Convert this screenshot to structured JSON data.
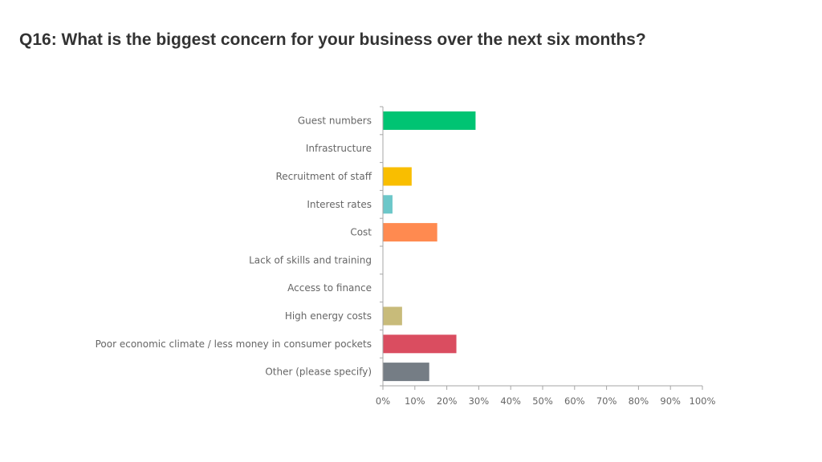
{
  "page": {
    "title": "Q16: What is the biggest concern for your business over the next six months?"
  },
  "chart_data": {
    "type": "bar",
    "orientation": "horizontal",
    "title": "",
    "xlabel": "",
    "ylabel": "",
    "categories": [
      "Guest numbers",
      "Infrastructure",
      "Recruitment of staff",
      "Interest rates",
      "Cost",
      "Lack of skills and training",
      "Access to finance",
      "High energy costs",
      "Poor economic climate / less money in consumer pockets",
      "Other (please specify)"
    ],
    "values": [
      29,
      0,
      9,
      3,
      17,
      0,
      0,
      6,
      23,
      14.5
    ],
    "colors": [
      "#00c473",
      "#a0a0a0",
      "#f9be00",
      "#6cc7c9",
      "#ff8a50",
      "#a0a0a0",
      "#a0a0a0",
      "#c8bb7a",
      "#da4d60",
      "#757d85"
    ],
    "xlim": [
      0,
      100
    ],
    "ticks": [
      "0%",
      "10%",
      "20%",
      "30%",
      "40%",
      "50%",
      "60%",
      "70%",
      "80%",
      "90%",
      "100%"
    ],
    "grid": false,
    "legend": "none"
  }
}
